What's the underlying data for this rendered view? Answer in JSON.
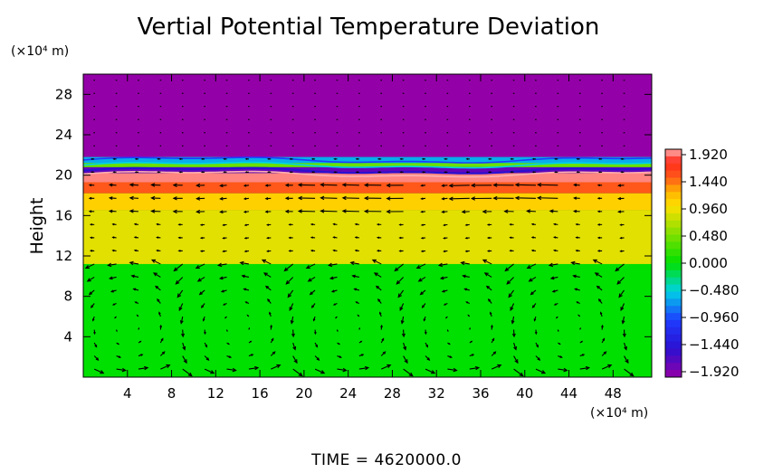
{
  "chart_data": {
    "type": "heatmap",
    "title": "Vertial Potential Temperature Deviation",
    "ylabel": "Height",
    "y_unit": "(×10⁴ m)",
    "x_unit": "(×10⁴ m)",
    "xlim": [
      0,
      51.5
    ],
    "ylim": [
      0,
      30
    ],
    "x_ticks": [
      "4",
      "8",
      "12",
      "16",
      "20",
      "24",
      "28",
      "32",
      "36",
      "40",
      "44",
      "48"
    ],
    "y_ticks": [
      "4",
      "8",
      "12",
      "16",
      "20",
      "24",
      "28"
    ],
    "colorbar": {
      "range": [
        -1.92,
        1.92
      ],
      "tick_labels": [
        "1.920",
        "1.440",
        "0.960",
        "0.480",
        "0.000",
        "-0.480",
        "-0.960",
        "-1.440",
        "-1.920"
      ]
    },
    "field_layers": [
      {
        "y_range": [
          0,
          11.2
        ],
        "value": 0.0
      },
      {
        "y_range": [
          11.2,
          16.5
        ],
        "value": 0.85
      },
      {
        "y_range": [
          16.5,
          18.2
        ],
        "value": 1.05
      },
      {
        "y_range": [
          18.2,
          19.3
        ],
        "value": 1.45
      },
      {
        "y_range": [
          19.3,
          20.2
        ],
        "value": 1.85
      },
      {
        "y_range": [
          20.2,
          20.8
        ],
        "value": -1.7
      },
      {
        "y_range": [
          20.8,
          21.2
        ],
        "value": 0.4
      },
      {
        "y_range": [
          21.2,
          21.8
        ],
        "value": -0.6
      },
      {
        "y_range": [
          21.8,
          30
        ],
        "value": -1.92
      }
    ],
    "wind_vectors": "circulation cells below 12 (x 10^4 m), westward flow near 17-19, weak flow above 22",
    "time_label": "TIME  =  4620000.0"
  },
  "colors": {
    "purple": "#9400a8",
    "blue": "#1e3cff",
    "cyan": "#00d2e6",
    "green": "#00e000",
    "yellow": "#ffe000",
    "orange": "#ff9a00",
    "red": "#ff2a1a",
    "pink": "#ffb0b0"
  }
}
